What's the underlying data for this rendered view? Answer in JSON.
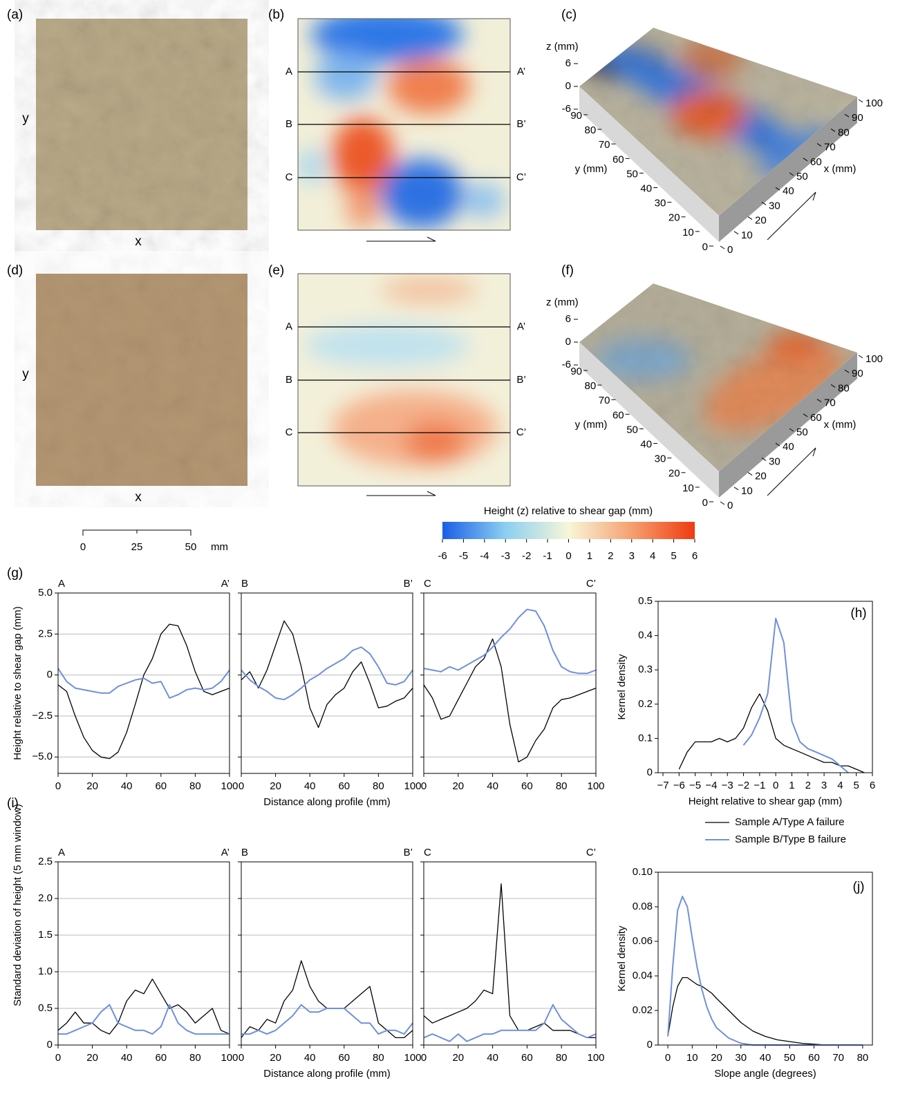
{
  "figure": {
    "panel_labels": [
      "(a)",
      "(b)",
      "(c)",
      "(d)",
      "(e)",
      "(f)",
      "(g)",
      "(h)",
      "(i)",
      "(j)"
    ],
    "photo_axis": {
      "x": "x",
      "y": "y"
    },
    "sections": [
      [
        "A",
        "A’"
      ],
      [
        "B",
        "B’"
      ],
      [
        "C",
        "C’"
      ]
    ],
    "surface_axes": {
      "z_label": "z (mm)",
      "z_ticks": [
        6,
        0,
        -6
      ],
      "y_label": "y (mm)",
      "y_ticks": [
        0,
        10,
        20,
        30,
        40,
        50,
        60,
        70,
        80,
        90
      ],
      "x_label": "x (mm)",
      "x_ticks": [
        0,
        10,
        20,
        30,
        40,
        50,
        60,
        70,
        80,
        90,
        100
      ]
    },
    "colorbar": {
      "title": "Height (z) relative to shear gap (mm)",
      "ticks": [
        -6,
        -5,
        -4,
        -3,
        -2,
        -1,
        0,
        1,
        2,
        3,
        4,
        5,
        6
      ],
      "colors": [
        "#1a5ee8",
        "#8ccff0",
        "#f8f6d8",
        "#f5a070",
        "#ef3a10"
      ]
    },
    "scale_bar": {
      "ticks": [
        0,
        25,
        50
      ],
      "unit": "mm"
    }
  },
  "chart_data": [
    {
      "type": "line",
      "ylabel": "Height relative to shear gap (mm)",
      "x": [
        0,
        5,
        10,
        15,
        20,
        25,
        30,
        35,
        40,
        45,
        50,
        55,
        60,
        65,
        70,
        75,
        80,
        85,
        90,
        95,
        100
      ],
      "series": [
        {
          "color": "#000000",
          "values": [
            -0.6,
            -1.0,
            -2.5,
            -3.8,
            -4.6,
            -5.0,
            -5.1,
            -4.7,
            -3.5,
            -1.8,
            0,
            1.0,
            2.5,
            3.1,
            3.0,
            1.8,
            0.2,
            -1.0,
            -1.2,
            -1.0,
            -0.8
          ]
        },
        {
          "color": "#6f8fde",
          "values": [
            0.4,
            -0.4,
            -0.8,
            -0.9,
            -1.0,
            -1.1,
            -1.1,
            -0.7,
            -0.5,
            -0.3,
            -0.2,
            -0.5,
            -0.4,
            -1.4,
            -1.2,
            -0.9,
            -0.8,
            -0.9,
            -0.8,
            -0.4,
            0.3
          ]
        }
      ],
      "xlim": [
        0,
        100
      ],
      "ylim": [
        -6,
        5
      ],
      "xticks": [
        0,
        20,
        40,
        60,
        80,
        100
      ],
      "yticks": [
        {
          "value": 5,
          "label": "5.0"
        },
        2.5,
        0,
        {
          "value": -2.5,
          "label": "−2.5"
        },
        {
          "value": -5,
          "label": "−5.0"
        }
      ],
      "grid": true
    },
    {
      "type": "line",
      "xlabel": "Distance along profile (mm)",
      "x": [
        0,
        5,
        10,
        15,
        20,
        25,
        30,
        35,
        40,
        45,
        50,
        55,
        60,
        65,
        70,
        75,
        80,
        85,
        90,
        95,
        100
      ],
      "series": [
        {
          "color": "#000000",
          "values": [
            -0.3,
            0.2,
            -0.8,
            0.3,
            1.8,
            3.3,
            2.5,
            0.5,
            -2.0,
            -3.2,
            -1.8,
            -1.2,
            -0.8,
            0.2,
            0.8,
            -0.5,
            -2.0,
            -1.9,
            -1.6,
            -1.4,
            -0.8
          ]
        },
        {
          "color": "#6f8fde",
          "values": [
            0.3,
            -0.3,
            -0.7,
            -1.0,
            -1.4,
            -1.5,
            -1.2,
            -0.8,
            -0.3,
            0.0,
            0.4,
            0.7,
            1.0,
            1.5,
            1.7,
            1.3,
            0.5,
            -0.5,
            -0.6,
            -0.4,
            0.3
          ]
        }
      ],
      "xlim": [
        0,
        100
      ],
      "ylim": [
        -6,
        5
      ],
      "xticks": [
        0,
        20,
        40,
        60,
        80,
        100
      ],
      "yticks": [
        5,
        2.5,
        0,
        -2.5,
        -5
      ],
      "ytick_labels": false,
      "grid": true
    },
    {
      "type": "line",
      "x": [
        0,
        5,
        10,
        15,
        20,
        25,
        30,
        35,
        40,
        45,
        50,
        55,
        60,
        65,
        70,
        75,
        80,
        85,
        90,
        95,
        100
      ],
      "series": [
        {
          "color": "#000000",
          "values": [
            -0.6,
            -1.4,
            -2.7,
            -2.5,
            -1.5,
            -0.5,
            0.5,
            1.0,
            2.2,
            0.5,
            -3.0,
            -5.3,
            -5.0,
            -4.0,
            -3.3,
            -2.0,
            -1.5,
            -1.4,
            -1.2,
            -1.0,
            -0.8
          ]
        },
        {
          "color": "#6f8fde",
          "values": [
            0.4,
            0.3,
            0.2,
            0.5,
            0.3,
            0.6,
            0.9,
            1.2,
            1.7,
            2.3,
            2.8,
            3.5,
            4.0,
            3.9,
            3.0,
            1.5,
            0.5,
            0.2,
            0.1,
            0.1,
            0.3
          ]
        }
      ],
      "xlim": [
        0,
        100
      ],
      "ylim": [
        -6,
        5
      ],
      "xticks": [
        0,
        20,
        40,
        60,
        80,
        100
      ],
      "yticks": [
        5,
        2.5,
        0,
        -2.5,
        -5
      ],
      "ytick_labels": false,
      "grid": true
    },
    {
      "type": "line",
      "xlabel": "Height relative to shear gap (mm)",
      "ylabel": "Kernel density",
      "x": [
        -6,
        -5.5,
        -5,
        -4.5,
        -4,
        -3.5,
        -3,
        -2.5,
        -2,
        -1.5,
        -1,
        -0.5,
        0,
        0.5,
        1,
        1.5,
        2,
        2.5,
        3,
        3.5,
        4,
        4.5,
        5,
        5.5
      ],
      "series": [
        {
          "name": "Sample A/Type A failure",
          "color": "#000000",
          "values": [
            0.01,
            0.06,
            0.09,
            0.09,
            0.09,
            0.1,
            0.09,
            0.1,
            0.13,
            0.19,
            0.23,
            0.18,
            0.1,
            0.08,
            0.07,
            0.06,
            0.05,
            0.04,
            0.03,
            0.03,
            0.02,
            0.02,
            0.01,
            0
          ]
        },
        {
          "name": "Sample B/Type B failure",
          "color": "#6f8fde",
          "values": [
            null,
            null,
            null,
            null,
            null,
            null,
            null,
            null,
            0.08,
            0.11,
            0.16,
            0.23,
            0.45,
            0.38,
            0.15,
            0.09,
            0.07,
            0.06,
            0.05,
            0.04,
            0.02,
            0,
            null,
            null
          ]
        }
      ],
      "xlim": [
        -7.3,
        6
      ],
      "ylim": [
        0,
        0.5
      ],
      "xticks": [
        {
          "value": -7,
          "label": "−7"
        },
        {
          "value": -6,
          "label": "−6"
        },
        {
          "value": -5,
          "label": "−5"
        },
        {
          "value": -4,
          "label": "−4"
        },
        {
          "value": -3,
          "label": "−3"
        },
        {
          "value": -2,
          "label": "−2"
        },
        {
          "value": -1,
          "label": "−1"
        },
        0,
        1,
        2,
        3,
        4,
        5,
        6
      ],
      "yticks": [
        0,
        0.1,
        0.2,
        0.3,
        0.4,
        0.5
      ],
      "grid": false
    },
    {
      "type": "line",
      "ylabel": "Standard deviation of height (5 mm window)",
      "x": [
        0,
        5,
        10,
        15,
        20,
        25,
        30,
        35,
        40,
        45,
        50,
        55,
        60,
        65,
        70,
        75,
        80,
        85,
        90,
        95,
        100
      ],
      "series": [
        {
          "color": "#000000",
          "values": [
            0.2,
            0.3,
            0.45,
            0.3,
            0.3,
            0.2,
            0.15,
            0.3,
            0.6,
            0.75,
            0.7,
            0.9,
            0.7,
            0.5,
            0.55,
            0.45,
            0.3,
            0.4,
            0.5,
            0.2,
            0.15
          ]
        },
        {
          "color": "#6f8fde",
          "values": [
            0.15,
            0.15,
            0.2,
            0.25,
            0.3,
            0.45,
            0.55,
            0.3,
            0.25,
            0.2,
            0.2,
            0.15,
            0.25,
            0.55,
            0.3,
            0.2,
            0.15,
            0.15,
            0.15,
            0.15,
            0.15
          ]
        }
      ],
      "xlim": [
        0,
        100
      ],
      "ylim": [
        0,
        2.5
      ],
      "xticks": [
        0,
        20,
        40,
        60,
        80,
        100
      ],
      "yticks": [
        0,
        0.5,
        {
          "value": 1,
          "label": "1.0"
        },
        1.5,
        {
          "value": 2,
          "label": "2.0"
        },
        2.5
      ],
      "grid": true
    },
    {
      "type": "line",
      "xlabel": "Distance along profile (mm)",
      "x": [
        0,
        5,
        10,
        15,
        20,
        25,
        30,
        35,
        40,
        45,
        50,
        55,
        60,
        65,
        70,
        75,
        80,
        85,
        90,
        95,
        100
      ],
      "series": [
        {
          "color": "#000000",
          "values": [
            0.1,
            0.25,
            0.2,
            0.35,
            0.3,
            0.6,
            0.75,
            1.15,
            0.8,
            0.6,
            0.5,
            0.5,
            0.5,
            0.6,
            0.7,
            0.8,
            0.3,
            0.2,
            0.1,
            0.1,
            0.2
          ]
        },
        {
          "color": "#6f8fde",
          "values": [
            0.15,
            0.15,
            0.2,
            0.15,
            0.2,
            0.3,
            0.4,
            0.55,
            0.45,
            0.45,
            0.5,
            0.5,
            0.5,
            0.4,
            0.3,
            0.3,
            0.15,
            0.2,
            0.2,
            0.15,
            0.3
          ]
        }
      ],
      "xlim": [
        0,
        100
      ],
      "ylim": [
        0,
        2.5
      ],
      "xticks": [
        0,
        20,
        40,
        60,
        80,
        100
      ],
      "yticks": [
        0,
        0.5,
        1,
        1.5,
        2,
        2.5
      ],
      "ytick_labels": false,
      "grid": true
    },
    {
      "type": "line",
      "x": [
        0,
        5,
        10,
        15,
        20,
        25,
        30,
        35,
        40,
        45,
        50,
        55,
        60,
        65,
        70,
        75,
        80,
        85,
        90,
        95,
        100
      ],
      "series": [
        {
          "color": "#000000",
          "values": [
            0.4,
            0.3,
            0.35,
            0.4,
            0.45,
            0.5,
            0.6,
            0.75,
            0.7,
            2.2,
            0.4,
            0.2,
            0.2,
            0.25,
            0.3,
            0.2,
            0.2,
            0.2,
            0.15,
            0.1,
            0.1
          ]
        },
        {
          "color": "#6f8fde",
          "values": [
            0.1,
            0.15,
            0.1,
            0.05,
            0.15,
            0.05,
            0.1,
            0.15,
            0.15,
            0.2,
            0.2,
            0.2,
            0.2,
            0.2,
            0.3,
            0.55,
            0.35,
            0.25,
            0.15,
            0.1,
            0.15
          ]
        }
      ],
      "xlim": [
        0,
        100
      ],
      "ylim": [
        0,
        2.5
      ],
      "xticks": [
        0,
        20,
        40,
        60,
        80,
        100
      ],
      "yticks": [
        0,
        0.5,
        1,
        1.5,
        2,
        2.5
      ],
      "ytick_labels": false,
      "grid": true
    },
    {
      "type": "line",
      "xlabel": "Slope angle (degrees)",
      "ylabel": "Kernel density",
      "x": [
        0,
        2,
        4,
        6,
        8,
        10,
        12,
        14,
        16,
        18,
        20,
        25,
        30,
        35,
        40,
        45,
        50,
        55,
        60,
        65,
        70,
        75,
        80
      ],
      "series": [
        {
          "color": "#000000",
          "values": [
            0.005,
            0.022,
            0.034,
            0.039,
            0.039,
            0.037,
            0.035,
            0.034,
            0.032,
            0.03,
            0.027,
            0.02,
            0.013,
            0.008,
            0.005,
            0.003,
            0.002,
            0.001,
            0.0005,
            0,
            0,
            0,
            0
          ]
        },
        {
          "color": "#6f8fde",
          "values": [
            0.005,
            0.045,
            0.078,
            0.086,
            0.08,
            0.062,
            0.045,
            0.032,
            0.022,
            0.015,
            0.01,
            0.004,
            0.001,
            0,
            0,
            0,
            0,
            0,
            0,
            0,
            0,
            0,
            0
          ]
        }
      ],
      "xlim": [
        -4,
        84
      ],
      "ylim": [
        0,
        0.1
      ],
      "xticks": [
        0,
        10,
        20,
        30,
        40,
        50,
        60,
        70,
        80
      ],
      "yticks": [
        0,
        0.02,
        0.04,
        0.06,
        0.08,
        {
          "value": 0.1,
          "label": "0.10"
        }
      ],
      "grid": false
    }
  ]
}
